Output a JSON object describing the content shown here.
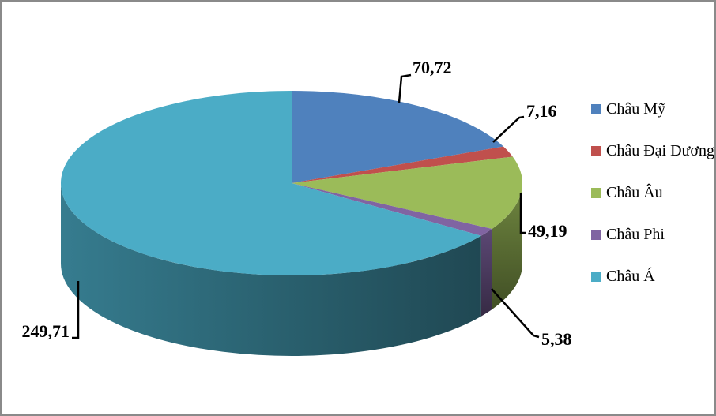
{
  "chart_data": {
    "type": "pie",
    "style": "3d-pie",
    "title": "",
    "start_angle_deg": 0,
    "direction": "clockwise",
    "legend_position": "right",
    "decimal_separator": ",",
    "slices": [
      {
        "label": "Châu Mỹ",
        "value": 70.72,
        "value_label": "70,72",
        "color": "#4F81BD"
      },
      {
        "label": "Châu Đại Dương",
        "value": 7.16,
        "value_label": "7,16",
        "color": "#C0504D"
      },
      {
        "label": "Châu Âu",
        "value": 49.19,
        "value_label": "49,19",
        "color": "#9BBB59"
      },
      {
        "label": "Châu Phi",
        "value": 5.38,
        "value_label": "5,38",
        "color": "#8064A2"
      },
      {
        "label": "Châu Á",
        "value": 249.71,
        "value_label": "249,71",
        "color": "#4BACC6"
      }
    ]
  },
  "frame": {
    "background_color": "#FFFFFF",
    "border_color": "#8A8A8A",
    "label_color": "#000000",
    "leader_line_color": "#000000"
  }
}
